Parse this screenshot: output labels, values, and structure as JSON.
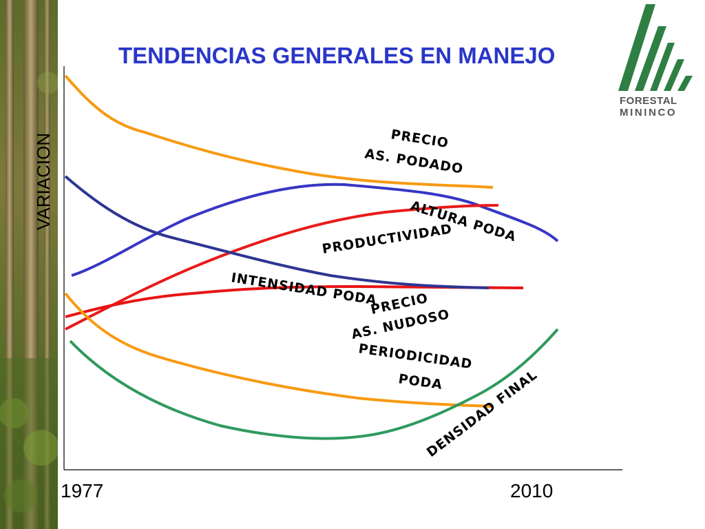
{
  "slide": {
    "title": "TENDENCIAS GENERALES EN MANEJO",
    "title_color": "#2a36c8"
  },
  "logo": {
    "line1": "FORESTAL",
    "line2": "MININCO",
    "color": "#2f7f44"
  },
  "chart_data": {
    "type": "line",
    "xlabel": "",
    "ylabel": "VARIACION",
    "x_ticks": [
      "1977",
      "2010"
    ],
    "grid": false,
    "series": [
      {
        "name": "PRECIO AS. PODADO",
        "color": "#f79a12",
        "trend": "decreasing"
      },
      {
        "name": "ALTURA PODA",
        "color": "#3636c4",
        "trend": "rise then fall"
      },
      {
        "name": "PRODUCTIVIDAD",
        "color": "#ea1a1a",
        "trend": "increasing"
      },
      {
        "name": "INTENSIDAD PODA",
        "color": "#e81414",
        "trend": "slight increase then flat"
      },
      {
        "name": "PRECIO AS. NUDOSO",
        "color": "#2e3592",
        "trend": "decreasing"
      },
      {
        "name": "PERIODICIDAD PODA",
        "color": "#f79a12",
        "trend": "decreasing"
      },
      {
        "name": "DENSIDAD FINAL",
        "color": "#2f9a5e",
        "trend": "fall then rise"
      }
    ]
  },
  "labels": {
    "precio_podado_1": "PRECIO",
    "precio_podado_2": "AS. PODADO",
    "altura_poda_1": "ALTURA PODA",
    "productividad": "PRODUCTIVIDAD",
    "intensidad_poda": "INTENSIDAD PODA",
    "precio_nudoso_1": "PRECIO",
    "precio_nudoso_2": "AS. NUDOSO",
    "periodicidad_1": "PERIODICIDAD",
    "periodicidad_2": "PODA",
    "densidad_final": "DENSIDAD FINAL"
  }
}
